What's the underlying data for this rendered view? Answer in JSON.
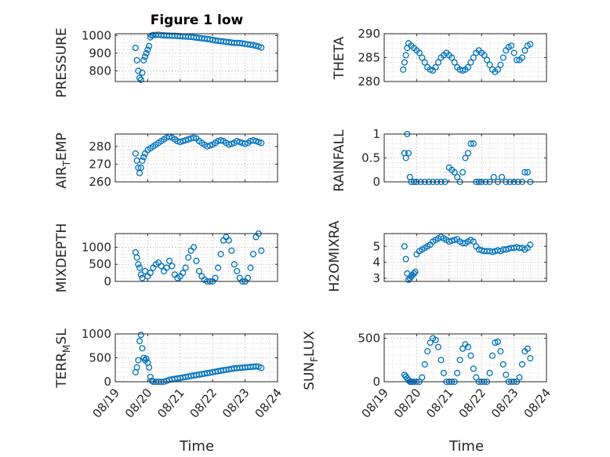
{
  "chart_data": [
    {
      "type": "scatter",
      "title": "Figure 1 low",
      "ylabel": "PRESSURE",
      "ylim": [
        740,
        1010
      ],
      "yticks": [
        800,
        900,
        1000
      ],
      "x_range": [
        "08/19",
        "08/24"
      ],
      "marker_color": "#0072BD",
      "grid": true,
      "x": [
        "08/19 15:00",
        "08/19 16:00",
        "08/19 17:00",
        "08/19 18:00",
        "08/19 19:00",
        "08/19 20:00",
        "08/19 21:00",
        "08/19 22:00",
        "08/19 23:00",
        "08/20 00:00",
        "08/20 01:00",
        "08/20 02:00",
        "08/20 03:00",
        "08/20 04:00",
        "08/20 06:00",
        "08/20 08:00",
        "08/20 10:00",
        "08/20 12:00",
        "08/20 14:00",
        "08/20 16:00",
        "08/20 18:00",
        "08/20 20:00",
        "08/20 22:00",
        "08/21 00:00",
        "08/21 02:00",
        "08/21 04:00",
        "08/21 06:00",
        "08/21 08:00",
        "08/21 10:00",
        "08/21 12:00",
        "08/21 14:00",
        "08/21 16:00",
        "08/21 18:00",
        "08/21 20:00",
        "08/21 22:00",
        "08/22 00:00",
        "08/22 02:00",
        "08/22 04:00",
        "08/22 06:00",
        "08/22 08:00",
        "08/22 10:00",
        "08/22 12:00",
        "08/22 14:00",
        "08/22 16:00",
        "08/22 18:00",
        "08/22 20:00",
        "08/22 22:00",
        "08/23 00:00",
        "08/23 02:00",
        "08/23 04:00",
        "08/23 06:00",
        "08/23 08:00",
        "08/23 10:00",
        "08/23 12:00"
      ],
      "y": [
        930,
        860,
        800,
        760,
        750,
        790,
        860,
        880,
        900,
        920,
        940,
        990,
        1000,
        1002,
        1003,
        1004,
        1002,
        1001,
        1000,
        999,
        998,
        998,
        997,
        996,
        995,
        994,
        993,
        992,
        990,
        988,
        986,
        984,
        982,
        980,
        978,
        975,
        972,
        970,
        968,
        966,
        964,
        962,
        960,
        958,
        958,
        957,
        955,
        953,
        950,
        948,
        945,
        942,
        938,
        932
      ]
    },
    {
      "type": "scatter",
      "ylabel": "THETA",
      "ylim": [
        280,
        290
      ],
      "yticks": [
        280,
        285,
        290
      ],
      "x_range": [
        "08/19",
        "08/24"
      ],
      "marker_color": "#0072BD",
      "grid": true,
      "x": [
        "08/19 14:00",
        "08/19 15:00",
        "08/19 16:00",
        "08/19 17:00",
        "08/19 18:00",
        "08/19 20:00",
        "08/19 22:00",
        "08/20 00:00",
        "08/20 02:00",
        "08/20 04:00",
        "08/20 06:00",
        "08/20 08:00",
        "08/20 10:00",
        "08/20 12:00",
        "08/20 14:00",
        "08/20 16:00",
        "08/20 18:00",
        "08/20 20:00",
        "08/20 22:00",
        "08/21 00:00",
        "08/21 02:00",
        "08/21 04:00",
        "08/21 06:00",
        "08/21 08:00",
        "08/21 10:00",
        "08/21 12:00",
        "08/21 14:00",
        "08/21 16:00",
        "08/21 18:00",
        "08/21 20:00",
        "08/21 22:00",
        "08/22 00:00",
        "08/22 02:00",
        "08/22 04:00",
        "08/22 06:00",
        "08/22 08:00",
        "08/22 10:00",
        "08/22 12:00",
        "08/22 14:00",
        "08/22 16:00",
        "08/22 18:00",
        "08/22 20:00",
        "08/22 22:00",
        "08/23 00:00",
        "08/23 02:00",
        "08/23 04:00",
        "08/23 06:00",
        "08/23 08:00",
        "08/23 10:00",
        "08/23 12:00"
      ],
      "y": [
        282.5,
        284,
        285.5,
        287,
        288,
        287.5,
        287,
        286.5,
        286,
        285,
        284,
        283,
        282.5,
        282.3,
        283,
        284,
        285,
        285.5,
        286,
        285.5,
        285,
        284,
        283,
        282.5,
        282.3,
        282.5,
        283,
        284,
        285,
        286,
        286.5,
        286,
        285.5,
        284.5,
        283.5,
        282.5,
        282,
        282.5,
        283.5,
        285,
        286.5,
        287.2,
        287.5,
        286,
        284.5,
        284.5,
        285,
        286.5,
        287.5,
        287.8
      ]
    },
    {
      "type": "scatter",
      "ylabel": "AIR_TEMP",
      "ylim": [
        260,
        287
      ],
      "yticks": [
        260,
        270,
        280
      ],
      "x_range": [
        "08/19",
        "08/24"
      ],
      "marker_color": "#0072BD",
      "grid": true,
      "x": [
        "08/19 15:00",
        "08/19 16:00",
        "08/19 17:00",
        "08/19 18:00",
        "08/19 19:00",
        "08/19 20:00",
        "08/19 21:00",
        "08/19 22:00",
        "08/20 00:00",
        "08/20 02:00",
        "08/20 04:00",
        "08/20 06:00",
        "08/20 08:00",
        "08/20 10:00",
        "08/20 12:00",
        "08/20 14:00",
        "08/20 16:00",
        "08/20 18:00",
        "08/20 20:00",
        "08/20 22:00",
        "08/21 00:00",
        "08/21 02:00",
        "08/21 04:00",
        "08/21 06:00",
        "08/21 08:00",
        "08/21 10:00",
        "08/21 12:00",
        "08/21 14:00",
        "08/21 16:00",
        "08/21 18:00",
        "08/21 20:00",
        "08/21 22:00",
        "08/22 00:00",
        "08/22 02:00",
        "08/22 04:00",
        "08/22 06:00",
        "08/22 08:00",
        "08/22 10:00",
        "08/22 12:00",
        "08/22 14:00",
        "08/22 16:00",
        "08/22 18:00",
        "08/22 20:00",
        "08/22 22:00",
        "08/23 00:00",
        "08/23 02:00",
        "08/23 04:00",
        "08/23 06:00",
        "08/23 08:00",
        "08/23 10:00",
        "08/23 12:00"
      ],
      "y": [
        276,
        272,
        268,
        265,
        268,
        272,
        274,
        276,
        278,
        279,
        280,
        281,
        282,
        283,
        284,
        285,
        285.5,
        285,
        284,
        283,
        282.5,
        283,
        283.5,
        284,
        284.5,
        285,
        284.5,
        283,
        282,
        281,
        280,
        280.5,
        281,
        282,
        283,
        283.5,
        283,
        282,
        281,
        281.5,
        282,
        283,
        282.5,
        282,
        281.5,
        282,
        283,
        283.5,
        283,
        282.5,
        282
      ]
    },
    {
      "type": "scatter",
      "ylabel": "RAINFALL",
      "ylim": [
        0,
        1
      ],
      "yticks": [
        0,
        0.5,
        1
      ],
      "x_range": [
        "08/19",
        "08/24"
      ],
      "marker_color": "#0072BD",
      "grid": true,
      "x": [
        "08/19 15:00",
        "08/19 16:00",
        "08/19 17:00",
        "08/19 18:00",
        "08/19 19:00",
        "08/19 20:00",
        "08/19 22:00",
        "08/20 00:00",
        "08/20 03:00",
        "08/20 06:00",
        "08/20 09:00",
        "08/20 12:00",
        "08/20 15:00",
        "08/20 18:00",
        "08/20 21:00",
        "08/21 00:00",
        "08/21 02:00",
        "08/21 04:00",
        "08/21 06:00",
        "08/21 08:00",
        "08/21 10:00",
        "08/21 12:00",
        "08/21 14:00",
        "08/21 16:00",
        "08/21 18:00",
        "08/21 20:00",
        "08/21 22:00",
        "08/22 00:00",
        "08/22 03:00",
        "08/22 06:00",
        "08/22 09:00",
        "08/22 12:00",
        "08/22 15:00",
        "08/22 18:00",
        "08/22 21:00",
        "08/23 00:00",
        "08/23 03:00",
        "08/23 06:00",
        "08/23 08:00",
        "08/23 10:00",
        "08/23 12:00"
      ],
      "y": [
        0.6,
        0.5,
        1.0,
        0.6,
        0.1,
        0,
        0,
        0,
        0,
        0,
        0,
        0,
        0,
        0,
        0,
        0.3,
        0.25,
        0.2,
        0.1,
        0,
        0.2,
        0.5,
        0.6,
        0.8,
        0.8,
        0,
        0,
        0,
        0,
        0,
        0.1,
        0,
        0.1,
        0,
        0,
        0,
        0,
        0,
        0.2,
        0.2,
        0
      ]
    },
    {
      "type": "scatter",
      "ylabel": "MIXDEPTH",
      "ylim": [
        0,
        1400
      ],
      "yticks": [
        0,
        500,
        1000
      ],
      "x_range": [
        "08/19",
        "08/24"
      ],
      "marker_color": "#0072BD",
      "grid": true,
      "x": [
        "08/19 15:00",
        "08/19 16:00",
        "08/19 17:00",
        "08/19 18:00",
        "08/19 19:00",
        "08/19 20:00",
        "08/19 22:00",
        "08/20 00:00",
        "08/20 02:00",
        "08/20 04:00",
        "08/20 06:00",
        "08/20 08:00",
        "08/20 10:00",
        "08/20 12:00",
        "08/20 14:00",
        "08/20 16:00",
        "08/20 18:00",
        "08/20 20:00",
        "08/20 22:00",
        "08/21 00:00",
        "08/21 02:00",
        "08/21 04:00",
        "08/21 06:00",
        "08/21 08:00",
        "08/21 10:00",
        "08/21 12:00",
        "08/21 14:00",
        "08/21 16:00",
        "08/21 18:00",
        "08/21 20:00",
        "08/21 22:00",
        "08/22 00:00",
        "08/22 02:00",
        "08/22 04:00",
        "08/22 06:00",
        "08/22 08:00",
        "08/22 10:00",
        "08/22 12:00",
        "08/22 14:00",
        "08/22 16:00",
        "08/22 18:00",
        "08/22 20:00",
        "08/22 22:00",
        "08/23 00:00",
        "08/23 02:00",
        "08/23 04:00",
        "08/23 06:00",
        "08/23 08:00",
        "08/23 10:00",
        "08/23 12:00"
      ],
      "y": [
        850,
        700,
        500,
        400,
        200,
        100,
        300,
        150,
        250,
        400,
        500,
        550,
        450,
        300,
        400,
        600,
        450,
        200,
        100,
        150,
        250,
        400,
        700,
        900,
        1000,
        600,
        300,
        150,
        50,
        0,
        0,
        0,
        100,
        400,
        800,
        1200,
        1300,
        1200,
        900,
        500,
        300,
        100,
        0,
        0,
        100,
        400,
        800,
        1300,
        1400,
        900
      ]
    },
    {
      "type": "scatter",
      "ylabel": "H2OMIXRA",
      "ylim": [
        2.8,
        5.8
      ],
      "yticks": [
        3,
        4,
        5
      ],
      "x_range": [
        "08/19",
        "08/24"
      ],
      "marker_color": "#0072BD",
      "grid": true,
      "x": [
        "08/19 15:00",
        "08/19 16:00",
        "08/19 17:00",
        "08/19 18:00",
        "08/19 19:00",
        "08/19 20:00",
        "08/19 21:00",
        "08/19 22:00",
        "08/19 23:00",
        "08/20 00:00",
        "08/20 02:00",
        "08/20 04:00",
        "08/20 06:00",
        "08/20 08:00",
        "08/20 10:00",
        "08/20 12:00",
        "08/20 14:00",
        "08/20 16:00",
        "08/20 18:00",
        "08/20 20:00",
        "08/20 22:00",
        "08/21 00:00",
        "08/21 02:00",
        "08/21 04:00",
        "08/21 06:00",
        "08/21 08:00",
        "08/21 10:00",
        "08/21 12:00",
        "08/21 14:00",
        "08/21 16:00",
        "08/21 18:00",
        "08/21 20:00",
        "08/21 22:00",
        "08/22 00:00",
        "08/22 02:00",
        "08/22 04:00",
        "08/22 06:00",
        "08/22 08:00",
        "08/22 10:00",
        "08/22 12:00",
        "08/22 14:00",
        "08/22 16:00",
        "08/22 18:00",
        "08/22 20:00",
        "08/22 22:00",
        "08/23 00:00",
        "08/23 02:00",
        "08/23 04:00",
        "08/23 06:00",
        "08/23 08:00",
        "08/23 10:00",
        "08/23 12:00"
      ],
      "y": [
        5.0,
        4.2,
        3.3,
        2.9,
        3.0,
        3.1,
        3.2,
        3.3,
        3.4,
        4.5,
        4.7,
        4.8,
        4.9,
        5.0,
        5.1,
        5.3,
        5.4,
        5.5,
        5.6,
        5.5,
        5.4,
        5.3,
        5.35,
        5.4,
        5.45,
        5.3,
        5.2,
        5.2,
        5.3,
        5.4,
        5.3,
        5.0,
        4.8,
        4.75,
        4.7,
        4.7,
        4.7,
        4.65,
        4.7,
        4.75,
        4.7,
        4.8,
        4.8,
        4.85,
        4.9,
        4.9,
        4.95,
        4.9,
        4.9,
        4.8,
        4.9,
        5.1
      ]
    },
    {
      "type": "scatter",
      "ylabel": "TERR_MSL",
      "ylim": [
        0,
        1000
      ],
      "yticks": [
        0,
        500,
        1000
      ],
      "x_range": [
        "08/19",
        "08/24"
      ],
      "marker_color": "#0072BD",
      "grid": true,
      "x": [
        "08/19 15:00",
        "08/19 16:00",
        "08/19 17:00",
        "08/19 18:00",
        "08/19 19:00",
        "08/19 20:00",
        "08/19 21:00",
        "08/19 22:00",
        "08/19 23:00",
        "08/20 00:00",
        "08/20 01:00",
        "08/20 02:00",
        "08/20 03:00",
        "08/20 04:00",
        "08/20 06:00",
        "08/20 08:00",
        "08/20 10:00",
        "08/20 12:00",
        "08/20 14:00",
        "08/20 16:00",
        "08/20 18:00",
        "08/20 20:00",
        "08/20 22:00",
        "08/21 00:00",
        "08/21 02:00",
        "08/21 04:00",
        "08/21 06:00",
        "08/21 08:00",
        "08/21 10:00",
        "08/21 12:00",
        "08/21 14:00",
        "08/21 16:00",
        "08/21 18:00",
        "08/21 20:00",
        "08/21 22:00",
        "08/22 00:00",
        "08/22 02:00",
        "08/22 04:00",
        "08/22 06:00",
        "08/22 08:00",
        "08/22 10:00",
        "08/22 12:00",
        "08/22 14:00",
        "08/22 16:00",
        "08/22 18:00",
        "08/22 20:00",
        "08/22 22:00",
        "08/23 00:00",
        "08/23 02:00",
        "08/23 04:00",
        "08/23 06:00",
        "08/23 08:00",
        "08/23 10:00",
        "08/23 12:00"
      ],
      "y": [
        200,
        300,
        450,
        850,
        980,
        700,
        500,
        450,
        480,
        400,
        300,
        100,
        20,
        0,
        0,
        0,
        0,
        0,
        20,
        40,
        50,
        60,
        70,
        80,
        90,
        100,
        110,
        120,
        130,
        140,
        150,
        160,
        170,
        180,
        190,
        200,
        210,
        220,
        230,
        240,
        250,
        260,
        270,
        280,
        285,
        290,
        295,
        300,
        305,
        310,
        315,
        320,
        315,
        290
      ]
    },
    {
      "type": "scatter",
      "ylabel": "SUN_FLUX",
      "ylim": [
        0,
        550
      ],
      "yticks": [
        0,
        500
      ],
      "x_range": [
        "08/19",
        "08/24"
      ],
      "marker_color": "#0072BD",
      "grid": true,
      "x": [
        "08/19 15:00",
        "08/19 16:00",
        "08/19 17:00",
        "08/19 18:00",
        "08/19 19:00",
        "08/19 20:00",
        "08/19 21:00",
        "08/19 22:00",
        "08/20 00:00",
        "08/20 02:00",
        "08/20 04:00",
        "08/20 06:00",
        "08/20 08:00",
        "08/20 10:00",
        "08/20 12:00",
        "08/20 14:00",
        "08/20 16:00",
        "08/20 18:00",
        "08/20 20:00",
        "08/20 22:00",
        "08/21 00:00",
        "08/21 02:00",
        "08/21 04:00",
        "08/21 06:00",
        "08/21 08:00",
        "08/21 10:00",
        "08/21 12:00",
        "08/21 14:00",
        "08/21 16:00",
        "08/21 18:00",
        "08/21 20:00",
        "08/21 22:00",
        "08/22 00:00",
        "08/22 02:00",
        "08/22 04:00",
        "08/22 06:00",
        "08/22 08:00",
        "08/22 10:00",
        "08/22 12:00",
        "08/22 14:00",
        "08/22 16:00",
        "08/22 18:00",
        "08/22 20:00",
        "08/22 22:00",
        "08/23 00:00",
        "08/23 02:00",
        "08/23 04:00",
        "08/23 06:00",
        "08/23 08:00",
        "08/23 10:00",
        "08/23 12:00"
      ],
      "y": [
        80,
        60,
        40,
        20,
        0,
        0,
        0,
        0,
        0,
        0,
        50,
        200,
        350,
        450,
        500,
        480,
        400,
        250,
        100,
        0,
        0,
        0,
        0,
        100,
        250,
        380,
        430,
        400,
        300,
        150,
        50,
        0,
        0,
        0,
        0,
        100,
        300,
        450,
        460,
        350,
        200,
        80,
        0,
        0,
        0,
        0,
        50,
        200,
        350,
        380,
        270
      ]
    }
  ],
  "axes_labels": {
    "x_left": "Time",
    "x_right": "Time"
  },
  "x_tick_labels": [
    "08/19",
    "08/20",
    "08/21",
    "08/22",
    "08/23",
    "08/24"
  ]
}
